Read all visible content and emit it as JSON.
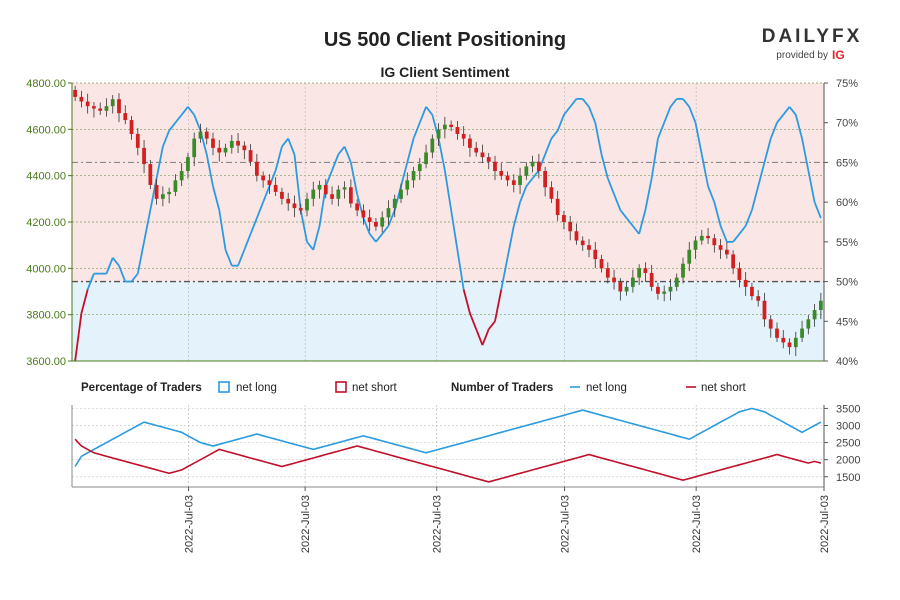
{
  "chart_data": [
    {
      "type": "candlestick",
      "title": "US 500 Client Positioning",
      "subtitle": "IG Client Sentiment",
      "y_left": {
        "ticks": [
          "4800.00",
          "4600.00",
          "4400.00",
          "4200.00",
          "4000.00",
          "3800.00",
          "3600.00"
        ],
        "range": [
          3600,
          4800
        ]
      },
      "y_right": {
        "ticks": [
          "75%",
          "70%",
          "65%",
          "60%",
          "55%",
          "50%",
          "45%",
          "40%"
        ],
        "range": [
          40,
          75
        ]
      },
      "ohlc_close": [
        4740,
        4720,
        4700,
        4690,
        4680,
        4700,
        4730,
        4670,
        4640,
        4580,
        4520,
        4450,
        4360,
        4300,
        4320,
        4330,
        4380,
        4420,
        4480,
        4560,
        4590,
        4560,
        4520,
        4500,
        4520,
        4550,
        4530,
        4510,
        4460,
        4400,
        4380,
        4360,
        4330,
        4300,
        4280,
        4260,
        4250,
        4300,
        4340,
        4360,
        4320,
        4300,
        4340,
        4350,
        4280,
        4250,
        4220,
        4200,
        4180,
        4220,
        4260,
        4300,
        4340,
        4380,
        4420,
        4450,
        4500,
        4560,
        4600,
        4620,
        4610,
        4580,
        4560,
        4520,
        4500,
        4480,
        4460,
        4420,
        4400,
        4380,
        4360,
        4400,
        4440,
        4460,
        4420,
        4350,
        4300,
        4230,
        4200,
        4160,
        4120,
        4100,
        4080,
        4040,
        4000,
        3960,
        3940,
        3900,
        3920,
        3960,
        4000,
        3980,
        3920,
        3890,
        3900,
        3920,
        3960,
        4020,
        4080,
        4120,
        4140,
        4130,
        4100,
        4080,
        4060,
        4000,
        3950,
        3920,
        3880,
        3860,
        3780,
        3740,
        3700,
        3680,
        3660,
        3700,
        3740,
        3780,
        3820,
        3860
      ],
      "sentiment_net_long_pct": [
        40,
        46,
        49,
        51,
        51,
        51,
        53,
        52,
        50,
        50,
        51,
        55,
        59,
        63,
        67,
        69,
        70,
        71,
        72,
        71,
        69,
        66,
        62,
        59,
        54,
        52,
        52,
        54,
        56,
        58,
        60,
        62,
        64,
        67,
        68,
        66,
        59,
        55,
        54,
        57,
        62,
        64,
        66,
        67,
        65,
        61,
        58,
        56,
        55,
        56,
        57,
        59,
        62,
        65,
        68,
        70,
        72,
        71,
        68,
        64,
        59,
        54,
        49,
        46,
        44,
        42,
        44,
        45,
        49,
        53,
        57,
        60,
        62,
        63,
        64,
        66,
        68,
        69,
        71,
        72,
        73,
        73,
        72,
        70,
        66,
        63,
        61,
        59,
        58,
        57,
        56,
        59,
        63,
        68,
        70,
        72,
        73,
        73,
        72,
        70,
        66,
        62,
        60,
        57,
        55,
        55,
        56,
        57,
        59,
        62,
        65,
        68,
        70,
        71,
        72,
        71,
        68,
        64,
        60,
        58
      ],
      "traders_net_long": [
        1800,
        2100,
        2200,
        2300,
        2400,
        2500,
        2600,
        2700,
        2800,
        2900,
        3000,
        3100,
        3050,
        3000,
        2950,
        2900,
        2850,
        2800,
        2700,
        2600,
        2500,
        2450,
        2400,
        2450,
        2500,
        2550,
        2600,
        2650,
        2700,
        2750,
        2700,
        2650,
        2600,
        2550,
        2500,
        2450,
        2400,
        2350,
        2300,
        2350,
        2400,
        2450,
        2500,
        2550,
        2600,
        2650,
        2700,
        2650,
        2600,
        2550,
        2500,
        2450,
        2400,
        2350,
        2300,
        2250,
        2200,
        2250,
        2300,
        2350,
        2400,
        2450,
        2500,
        2550,
        2600,
        2650,
        2700,
        2750,
        2800,
        2850,
        2900,
        2950,
        3000,
        3050,
        3100,
        3150,
        3200,
        3250,
        3300,
        3350,
        3400,
        3450,
        3400,
        3350,
        3300,
        3250,
        3200,
        3150,
        3100,
        3050,
        3000,
        2950,
        2900,
        2850,
        2800,
        2750,
        2700,
        2650,
        2600,
        2700,
        2800,
        2900,
        3000,
        3100,
        3200,
        3300,
        3400,
        3450,
        3500,
        3450,
        3400,
        3300,
        3200,
        3100,
        3000,
        2900,
        2800,
        2900,
        3000,
        3100
      ],
      "traders_net_short": [
        2600,
        2400,
        2300,
        2200,
        2150,
        2100,
        2050,
        2000,
        1950,
        1900,
        1850,
        1800,
        1750,
        1700,
        1650,
        1600,
        1650,
        1700,
        1800,
        1900,
        2000,
        2100,
        2200,
        2300,
        2250,
        2200,
        2150,
        2100,
        2050,
        2000,
        1950,
        1900,
        1850,
        1800,
        1850,
        1900,
        1950,
        2000,
        2050,
        2100,
        2150,
        2200,
        2250,
        2300,
        2350,
        2400,
        2350,
        2300,
        2250,
        2200,
        2150,
        2100,
        2050,
        2000,
        1950,
        1900,
        1850,
        1800,
        1750,
        1700,
        1650,
        1600,
        1550,
        1500,
        1450,
        1400,
        1350,
        1400,
        1450,
        1500,
        1550,
        1600,
        1650,
        1700,
        1750,
        1800,
        1850,
        1900,
        1950,
        2000,
        2050,
        2100,
        2150,
        2100,
        2050,
        2000,
        1950,
        1900,
        1850,
        1800,
        1750,
        1700,
        1650,
        1600,
        1550,
        1500,
        1450,
        1400,
        1450,
        1500,
        1550,
        1600,
        1650,
        1700,
        1750,
        1800,
        1850,
        1900,
        1950,
        2000,
        2050,
        2100,
        2150,
        2100,
        2050,
        2000,
        1950,
        1900,
        1950,
        1900
      ],
      "y_bottom": {
        "ticks": [
          "3500",
          "3000",
          "2500",
          "2000",
          "1500"
        ],
        "range": [
          1200,
          3600
        ]
      },
      "x_tick_labels": [
        "2022-Jul-03",
        "2022-Jul-03",
        "2022-Jul-03",
        "2022-Jul-03",
        "2022-Jul-03",
        "2022-Jul-03"
      ],
      "colors": {
        "bull": "#3a8a2a",
        "bear": "#d02020",
        "long": "#2b9be0",
        "short": "#c0102a",
        "bg_short": "#fbe6e6",
        "bg_long": "#e4f2fb"
      }
    }
  ],
  "legend": {
    "percentage_heading": "Percentage of Traders",
    "pct_long": "net long",
    "pct_short": "net short",
    "number_heading": "Number of Traders",
    "num_long": "net long",
    "num_short": "net short"
  },
  "brand": {
    "name": "DAILYFX",
    "provided_by": "provided by",
    "ig": "IG"
  }
}
